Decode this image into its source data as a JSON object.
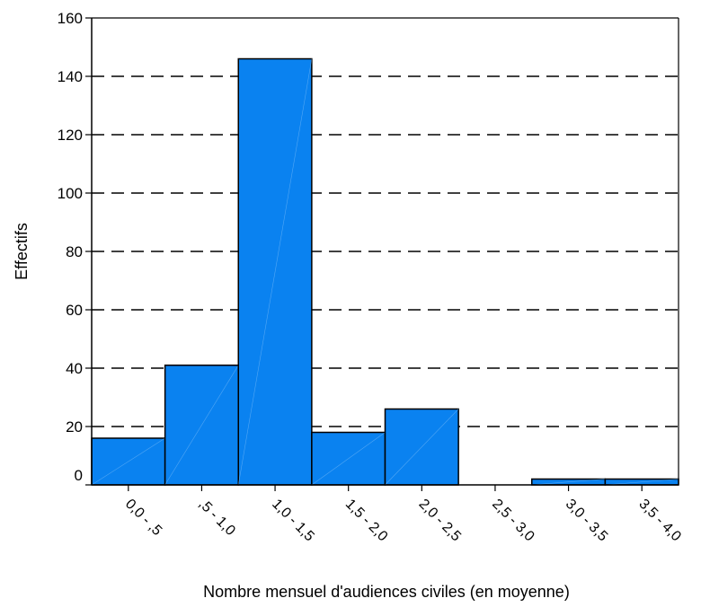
{
  "chart_data": {
    "type": "bar",
    "title": "",
    "xlabel": "Nombre mensuel d'audiences civiles (en moyenne)",
    "ylabel": "Effectifs",
    "categories": [
      "0,0 - ,5",
      ",5 - 1,0",
      "1,0 - 1,5",
      "1,5 - 2,0",
      "2,0 - 2,5",
      "2,5 - 3,0",
      "3,0 - 3,5",
      "3,5 - 4,0"
    ],
    "values": [
      16,
      41,
      146,
      18,
      26,
      0,
      2,
      2
    ],
    "ylim": [
      0,
      160
    ],
    "yticks": [
      0,
      20,
      40,
      60,
      80,
      100,
      120,
      140,
      160
    ],
    "grid": "dashed horizontal",
    "colors": {
      "bar": "#0a82f0",
      "outline": "#000000",
      "grid": "#000000"
    }
  }
}
